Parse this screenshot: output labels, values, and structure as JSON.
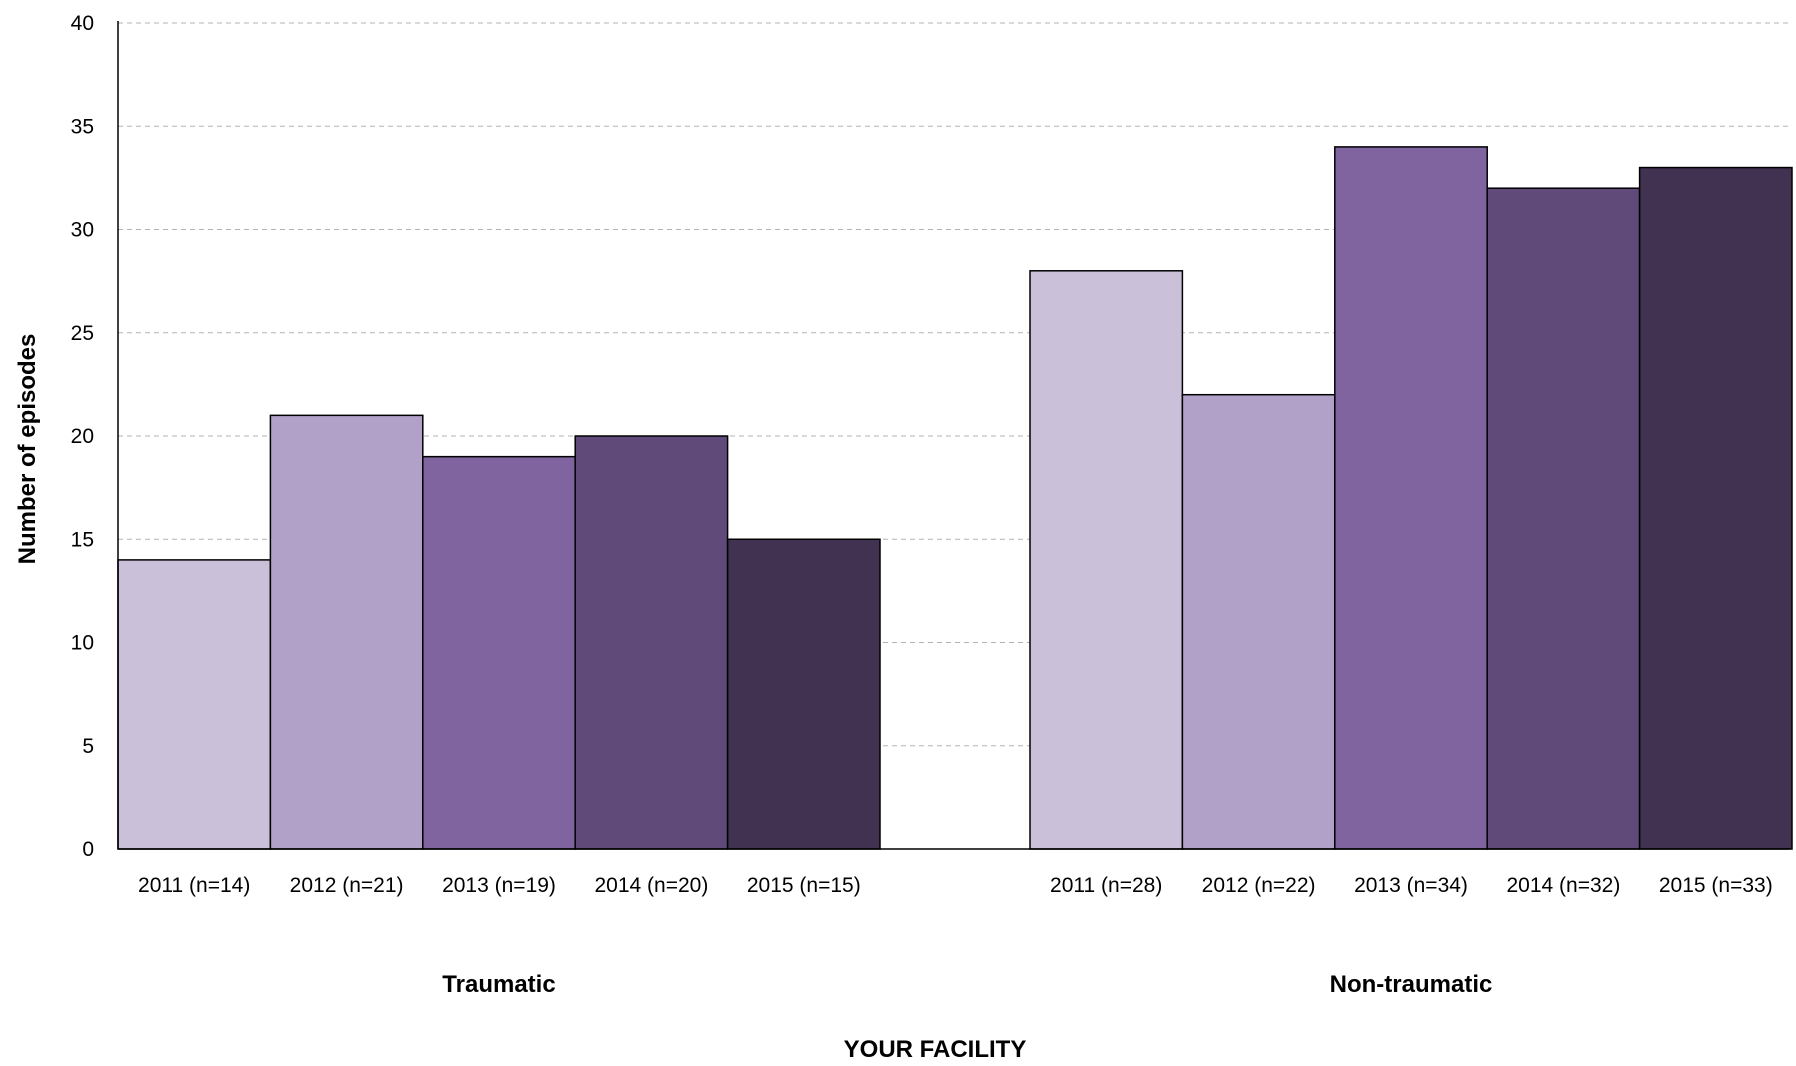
{
  "chart_data": {
    "type": "bar",
    "title": "",
    "ylabel": "Number of episodes",
    "xlabel": "YOUR FACILITY",
    "ylim": [
      0,
      40
    ],
    "yticks": [
      0,
      5,
      10,
      15,
      20,
      25,
      30,
      35,
      40
    ],
    "grid": "horizontal dashed",
    "groups": [
      {
        "label": "Traumatic",
        "bars": [
          {
            "label": "2011 (n=14)",
            "value": 14,
            "color": "#cac0da"
          },
          {
            "label": "2012 (n=21)",
            "value": 21,
            "color": "#b1a1c8"
          },
          {
            "label": "2013 (n=19)",
            "value": 19,
            "color": "#80649f"
          },
          {
            "label": "2014 (n=20)",
            "value": 20,
            "color": "#5f4a79"
          },
          {
            "label": "2015 (n=15)",
            "value": 15,
            "color": "#403250"
          }
        ]
      },
      {
        "label": "Non-traumatic",
        "bars": [
          {
            "label": "2011 (n=28)",
            "value": 28,
            "color": "#cac0da"
          },
          {
            "label": "2012 (n=22)",
            "value": 22,
            "color": "#b1a1c8"
          },
          {
            "label": "2013 (n=34)",
            "value": 34,
            "color": "#80649f"
          },
          {
            "label": "2014 (n=32)",
            "value": 32,
            "color": "#5f4a79"
          },
          {
            "label": "2015 (n=33)",
            "value": 33,
            "color": "#403250"
          }
        ]
      }
    ]
  }
}
